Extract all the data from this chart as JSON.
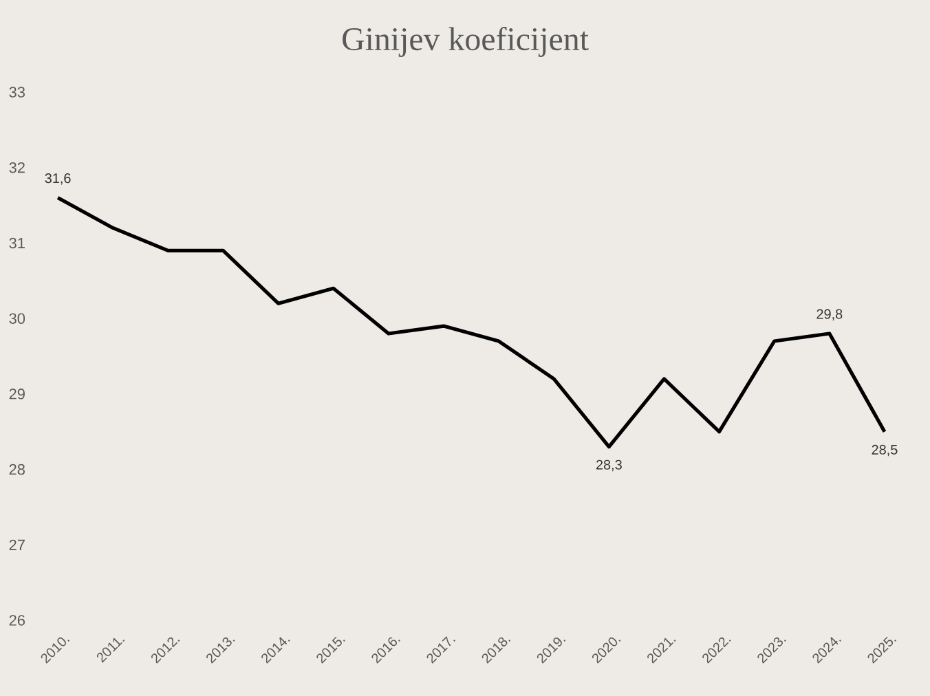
{
  "chart_data": {
    "type": "line",
    "title": "Ginijev koeficijent",
    "categories": [
      "2010.",
      "2011.",
      "2012.",
      "2013.",
      "2014.",
      "2015.",
      "2016.",
      "2017.",
      "2018.",
      "2019.",
      "2020.",
      "2021.",
      "2022.",
      "2023.",
      "2024.",
      "2025."
    ],
    "values": [
      31.6,
      31.2,
      30.9,
      30.9,
      30.2,
      30.4,
      29.8,
      29.9,
      29.7,
      29.2,
      28.3,
      29.2,
      28.5,
      29.7,
      29.8,
      28.5
    ],
    "value_labels": [
      "31,6",
      null,
      null,
      null,
      null,
      null,
      null,
      null,
      null,
      null,
      "28,3",
      null,
      null,
      null,
      "29,8",
      "28,5"
    ],
    "color": "#000000",
    "ylim": [
      26,
      33
    ],
    "yticks": [
      26,
      27,
      28,
      29,
      30,
      31,
      32,
      33
    ],
    "grid": false,
    "marker": "none",
    "line_style": "solid"
  }
}
